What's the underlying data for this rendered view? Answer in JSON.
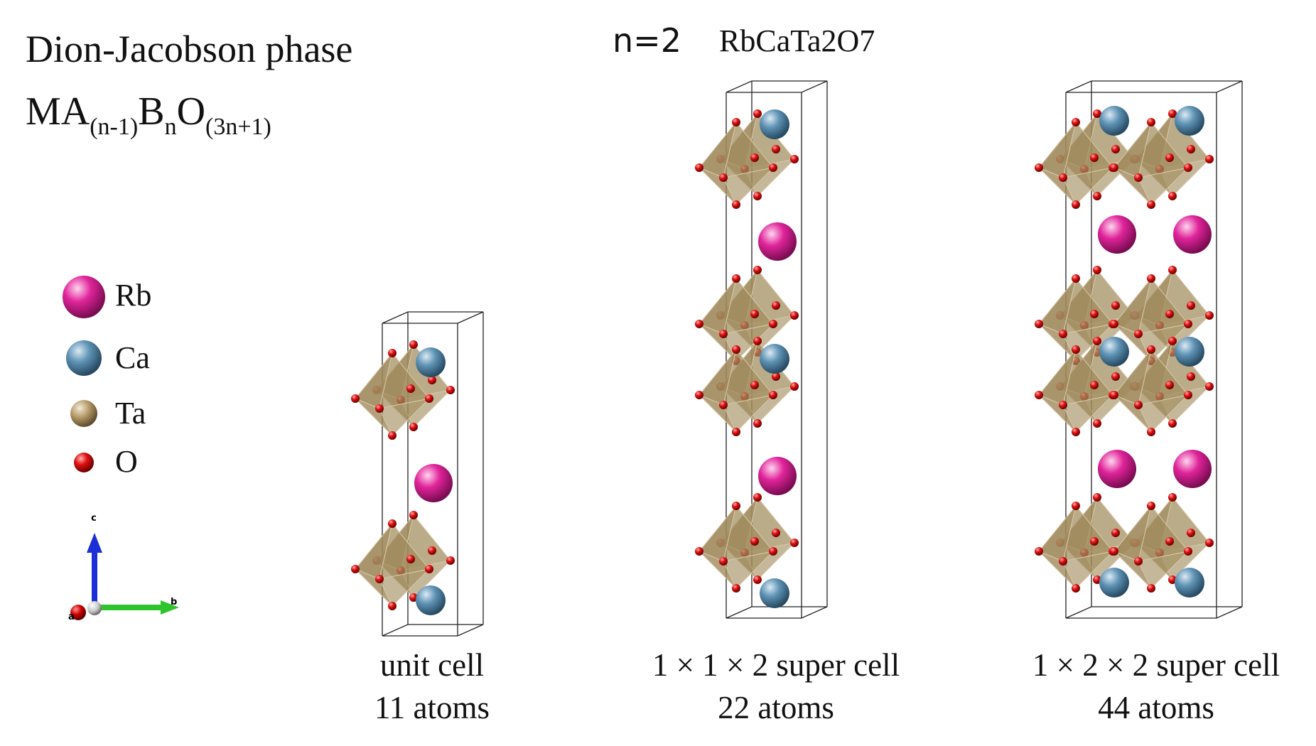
{
  "header": {
    "phase_title": "Dion-Jacobson phase",
    "formula": {
      "base1": "MA",
      "sub1": "(n-1)",
      "base2": "B",
      "sub2": "n",
      "base3": "O",
      "sub3": "(3n+1)"
    },
    "n_label": "n=2",
    "compound": "RbCaTa2O7"
  },
  "legend": {
    "items": [
      {
        "symbol": "Rb",
        "color": "#e0249a"
      },
      {
        "symbol": "Ca",
        "color": "#5f93b5"
      },
      {
        "symbol": "Ta",
        "color": "#b59a67"
      },
      {
        "symbol": "O",
        "color": "#e01010"
      }
    ]
  },
  "axes": {
    "c": "c",
    "a": "a",
    "b": "b"
  },
  "colors": {
    "octahedron": "#a08a5c",
    "cell_edge": "#222222",
    "axis_c": "#1a2fd6",
    "axis_b": "#2ec42e"
  },
  "structures": [
    {
      "caption_line1": "unit cell",
      "caption_line2": "11 atoms",
      "layers": 2
    },
    {
      "caption_line1": "1 × 1 × 2 super cell",
      "caption_line2": "22 atoms",
      "layers": 4
    },
    {
      "caption_line1": "1 × 2 × 2 super cell",
      "caption_line2": "44 atoms",
      "layers": 4
    }
  ]
}
